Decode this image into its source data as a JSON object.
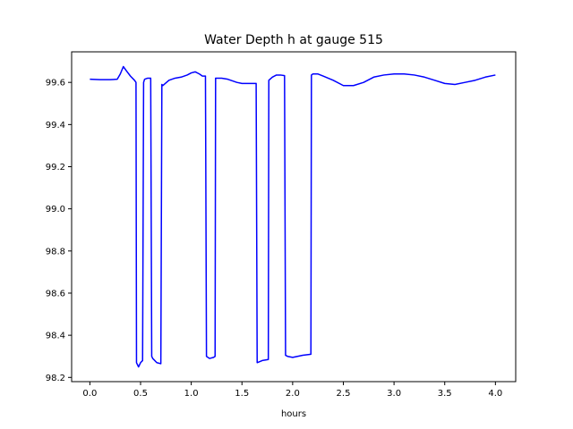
{
  "chart_data": {
    "type": "line",
    "title": "Water Depth h at gauge 515",
    "xlabel": "hours",
    "ylabel": "",
    "xlim": [
      -0.18,
      4.2
    ],
    "ylim": [
      98.18,
      99.745
    ],
    "xticks": [
      0.0,
      0.5,
      1.0,
      1.5,
      2.0,
      2.5,
      3.0,
      3.5,
      4.0
    ],
    "xtick_labels": [
      "0.0",
      "0.5",
      "1.0",
      "1.5",
      "2.0",
      "2.5",
      "3.0",
      "3.5",
      "4.0"
    ],
    "yticks": [
      98.2,
      98.4,
      98.6,
      98.8,
      99.0,
      99.2,
      99.4,
      99.6
    ],
    "ytick_labels": [
      "98.2",
      "98.4",
      "98.6",
      "98.8",
      "99.0",
      "99.2",
      "99.4",
      "99.6"
    ],
    "grid": false,
    "series": [
      {
        "color": "#0000ff",
        "x": [
          0.0,
          0.1,
          0.2,
          0.27,
          0.3,
          0.33,
          0.36,
          0.4,
          0.44,
          0.455,
          0.46,
          0.48,
          0.5,
          0.52,
          0.53,
          0.54,
          0.57,
          0.6,
          0.61,
          0.62,
          0.66,
          0.7,
          0.71,
          0.72,
          0.78,
          0.84,
          0.9,
          0.96,
          1.0,
          1.04,
          1.08,
          1.11,
          1.14,
          1.15,
          1.18,
          1.22,
          1.235,
          1.24,
          1.3,
          1.36,
          1.45,
          1.5,
          1.55,
          1.6,
          1.64,
          1.65,
          1.7,
          1.76,
          1.765,
          1.8,
          1.84,
          1.88,
          1.92,
          1.93,
          1.95,
          2.0,
          2.1,
          2.18,
          2.185,
          2.2,
          2.25,
          2.3,
          2.4,
          2.5,
          2.6,
          2.7,
          2.8,
          2.9,
          3.0,
          3.1,
          3.2,
          3.3,
          3.4,
          3.5,
          3.6,
          3.7,
          3.8,
          3.9,
          4.0
        ],
        "values": [
          99.615,
          99.613,
          99.613,
          99.615,
          99.64,
          99.675,
          99.655,
          99.63,
          99.61,
          99.6,
          98.27,
          98.25,
          98.27,
          98.28,
          99.6,
          99.615,
          99.62,
          99.62,
          98.3,
          98.29,
          98.27,
          98.265,
          99.59,
          99.585,
          99.61,
          99.62,
          99.625,
          99.635,
          99.645,
          99.65,
          99.64,
          99.63,
          99.63,
          98.3,
          98.29,
          98.295,
          98.3,
          99.62,
          99.62,
          99.615,
          99.6,
          99.595,
          99.595,
          99.595,
          99.595,
          98.27,
          98.28,
          98.285,
          99.61,
          99.625,
          99.635,
          99.635,
          99.632,
          98.305,
          98.3,
          98.295,
          98.305,
          98.31,
          99.635,
          99.64,
          99.64,
          99.63,
          99.61,
          99.585,
          99.585,
          99.6,
          99.625,
          99.635,
          99.64,
          99.64,
          99.635,
          99.625,
          99.61,
          99.595,
          99.59,
          99.6,
          99.61,
          99.625,
          99.635
        ]
      }
    ]
  }
}
